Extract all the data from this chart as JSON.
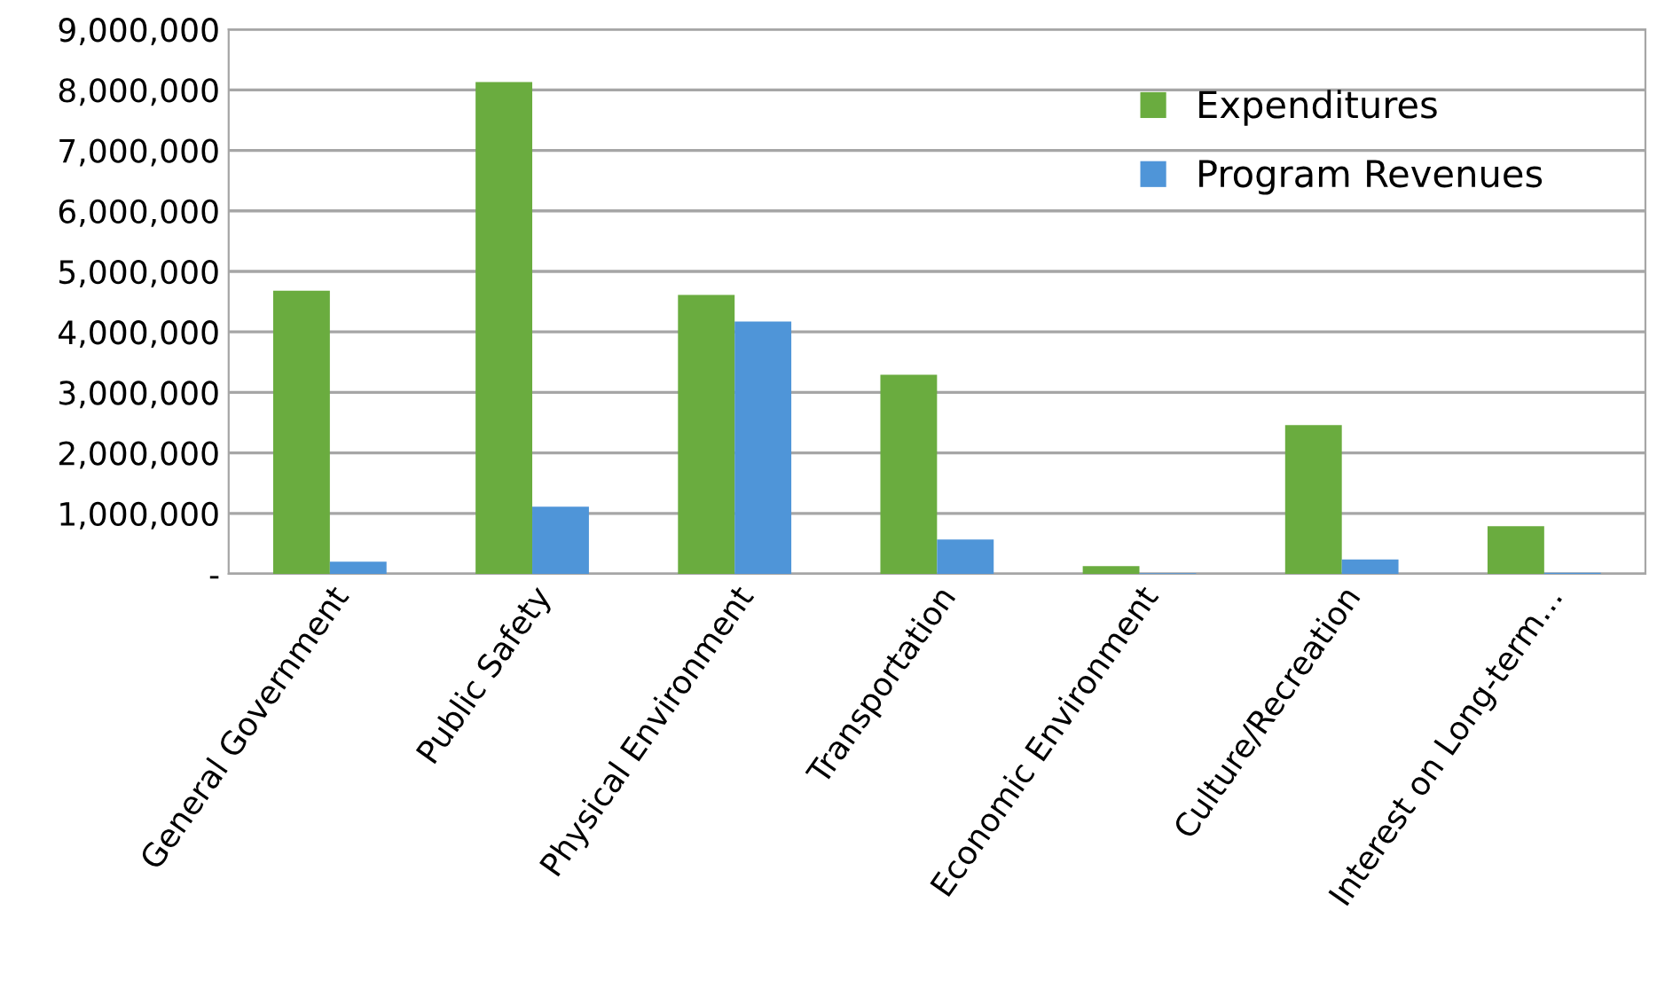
{
  "chart_data": {
    "type": "bar",
    "categories": [
      "General Government",
      "Public Safety",
      "Physical Environment",
      "Transportation",
      "Economic Environment",
      "Culture/Recreation",
      "Interest on Long-term…"
    ],
    "series": [
      {
        "name": "Expenditures",
        "color": "#6aac3f",
        "values": [
          4680000,
          8130000,
          4610000,
          3290000,
          130000,
          2460000,
          790000
        ]
      },
      {
        "name": "Program Revenues",
        "color": "#4f95d8",
        "values": [
          200000,
          1110000,
          4170000,
          570000,
          10000,
          240000,
          20000
        ]
      }
    ],
    "ylim": [
      0,
      9000000
    ],
    "yticks": [
      {
        "value": 0,
        "label": "-"
      },
      {
        "value": 1000000,
        "label": "1,000,000"
      },
      {
        "value": 2000000,
        "label": "2,000,000"
      },
      {
        "value": 3000000,
        "label": "3,000,000"
      },
      {
        "value": 4000000,
        "label": "4,000,000"
      },
      {
        "value": 5000000,
        "label": "5,000,000"
      },
      {
        "value": 6000000,
        "label": "6,000,000"
      },
      {
        "value": 7000000,
        "label": "7,000,000"
      },
      {
        "value": 8000000,
        "label": "8,000,000"
      },
      {
        "value": 9000000,
        "label": "9,000,000"
      }
    ],
    "grid": "y",
    "legend": "top right"
  }
}
